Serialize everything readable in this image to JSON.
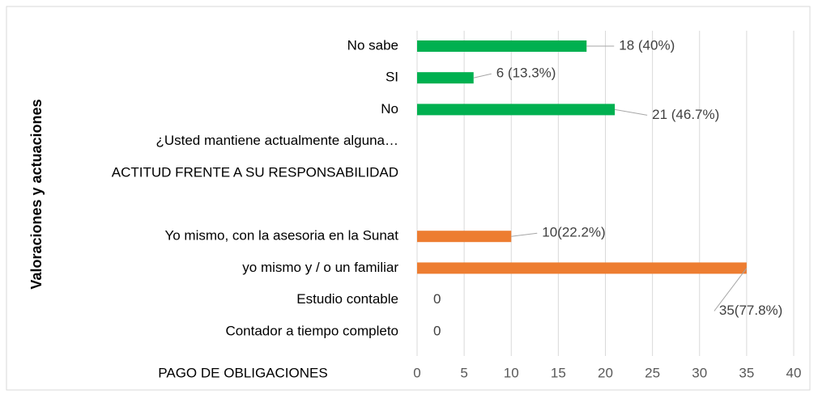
{
  "chart_data": {
    "type": "bar",
    "orientation": "horizontal",
    "y_axis_label": "Valoraciones y actuaciones",
    "group_label": "PAGO DE OBLIGACIONES",
    "categories": [
      "No sabe",
      "SI",
      "No",
      "¿Usted mantiene actualmente alguna…",
      "ACTITUD FRENTE A SU RESPONSABILIDAD",
      null,
      "Yo mismo, con la asesoria en la Sunat",
      "yo mismo y / o un familiar",
      "Estudio contable",
      "Contador a tiempo completo"
    ],
    "series": [
      {
        "color": "#00b050",
        "values": [
          18,
          6,
          21,
          null,
          null,
          null,
          null,
          null,
          null,
          null
        ],
        "value_labels": [
          "18 (40%)",
          "6 (13.3%)",
          "21 (46.7%)",
          null,
          null,
          null,
          null,
          null,
          null,
          null
        ]
      },
      {
        "color": "#ed7d31",
        "values": [
          null,
          null,
          null,
          null,
          null,
          null,
          10,
          35,
          0,
          0
        ],
        "value_labels": [
          null,
          null,
          null,
          null,
          null,
          null,
          "10(22.2%)",
          "35(77.8%)",
          "0",
          "0"
        ]
      }
    ],
    "xlim": [
      0,
      40
    ],
    "xticks": [
      0,
      5,
      10,
      15,
      20,
      25,
      30,
      35,
      40
    ],
    "grid": true
  }
}
